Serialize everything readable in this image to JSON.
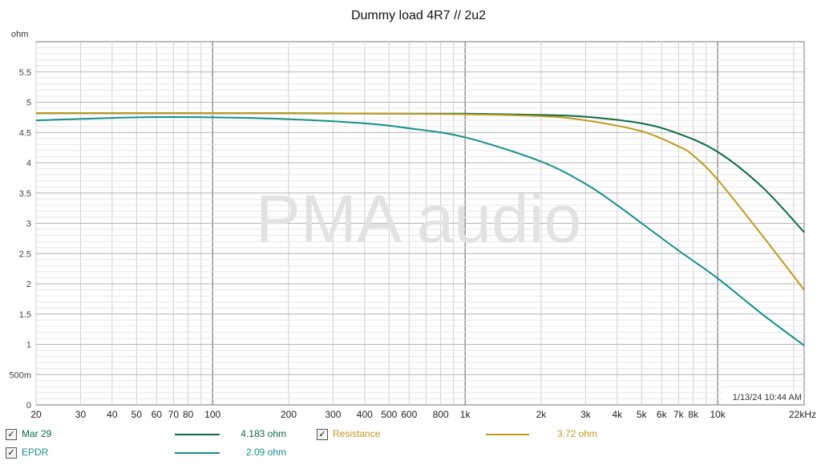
{
  "chart_data": {
    "type": "line",
    "title": "Dummy load 4R7 // 2u2",
    "ylabel": "ohm",
    "xlabel": "",
    "x_unit_label": "kHz",
    "xscale": "log",
    "xlim": [
      20,
      22000
    ],
    "ylim": [
      0,
      6
    ],
    "grid": true,
    "watermark": "PMA audio",
    "timestamp": "1/13/24 10:44 AM",
    "x_ticks": [
      {
        "value": 20,
        "label": "20"
      },
      {
        "value": 30,
        "label": "30"
      },
      {
        "value": 40,
        "label": "40"
      },
      {
        "value": 50,
        "label": "50"
      },
      {
        "value": 60,
        "label": "60"
      },
      {
        "value": 70,
        "label": "70"
      },
      {
        "value": 80,
        "label": "80"
      },
      {
        "value": 100,
        "label": "100"
      },
      {
        "value": 200,
        "label": "200"
      },
      {
        "value": 300,
        "label": "300"
      },
      {
        "value": 400,
        "label": "400"
      },
      {
        "value": 500,
        "label": "500"
      },
      {
        "value": 600,
        "label": "600"
      },
      {
        "value": 800,
        "label": "800"
      },
      {
        "value": 1000,
        "label": "1k"
      },
      {
        "value": 2000,
        "label": "2k"
      },
      {
        "value": 3000,
        "label": "3k"
      },
      {
        "value": 4000,
        "label": "4k"
      },
      {
        "value": 5000,
        "label": "5k"
      },
      {
        "value": 6000,
        "label": "6k"
      },
      {
        "value": 7000,
        "label": "7k"
      },
      {
        "value": 8000,
        "label": "8k"
      },
      {
        "value": 10000,
        "label": "10k"
      },
      {
        "value": 22000,
        "label": "22kHz"
      }
    ],
    "y_ticks": [
      {
        "value": 0,
        "label": "0"
      },
      {
        "value": 0.5,
        "label": "500m"
      },
      {
        "value": 1,
        "label": "1"
      },
      {
        "value": 1.5,
        "label": "1.5"
      },
      {
        "value": 2,
        "label": "2"
      },
      {
        "value": 2.5,
        "label": "2.5"
      },
      {
        "value": 3,
        "label": "3"
      },
      {
        "value": 3.5,
        "label": "3.5"
      },
      {
        "value": 4,
        "label": "4"
      },
      {
        "value": 4.5,
        "label": "4.5"
      },
      {
        "value": 5,
        "label": "5"
      },
      {
        "value": 5.5,
        "label": "5.5"
      }
    ],
    "series": [
      {
        "name": "Mar 29",
        "color": "#0b6b45",
        "legend_value": "4.183 ohm",
        "checked": true,
        "x": [
          20,
          50,
          100,
          200,
          500,
          1000,
          2000,
          3000,
          5000,
          7000,
          10000,
          15000,
          22000
        ],
        "y": [
          4.82,
          4.82,
          4.82,
          4.82,
          4.81,
          4.81,
          4.79,
          4.76,
          4.65,
          4.48,
          4.18,
          3.6,
          2.85
        ]
      },
      {
        "name": "Resistance",
        "color": "#c19a1c",
        "legend_value": "3.72 ohm",
        "checked": true,
        "x": [
          20,
          50,
          100,
          200,
          500,
          1000,
          2000,
          3000,
          5000,
          7000,
          8000,
          10000,
          15000,
          22000
        ],
        "y": [
          4.82,
          4.82,
          4.82,
          4.82,
          4.81,
          4.8,
          4.77,
          4.7,
          4.52,
          4.27,
          4.12,
          3.72,
          2.8,
          1.9
        ]
      },
      {
        "name": "EPDR",
        "color": "#138f8b",
        "legend_value": "2.09 ohm",
        "checked": true,
        "x": [
          20,
          50,
          100,
          200,
          400,
          600,
          1000,
          2000,
          3000,
          4000,
          5000,
          7000,
          10000,
          15000,
          22000
        ],
        "y": [
          4.7,
          4.75,
          4.75,
          4.72,
          4.65,
          4.57,
          4.42,
          4.02,
          3.65,
          3.3,
          3.0,
          2.55,
          2.09,
          1.5,
          0.98
        ]
      }
    ]
  }
}
